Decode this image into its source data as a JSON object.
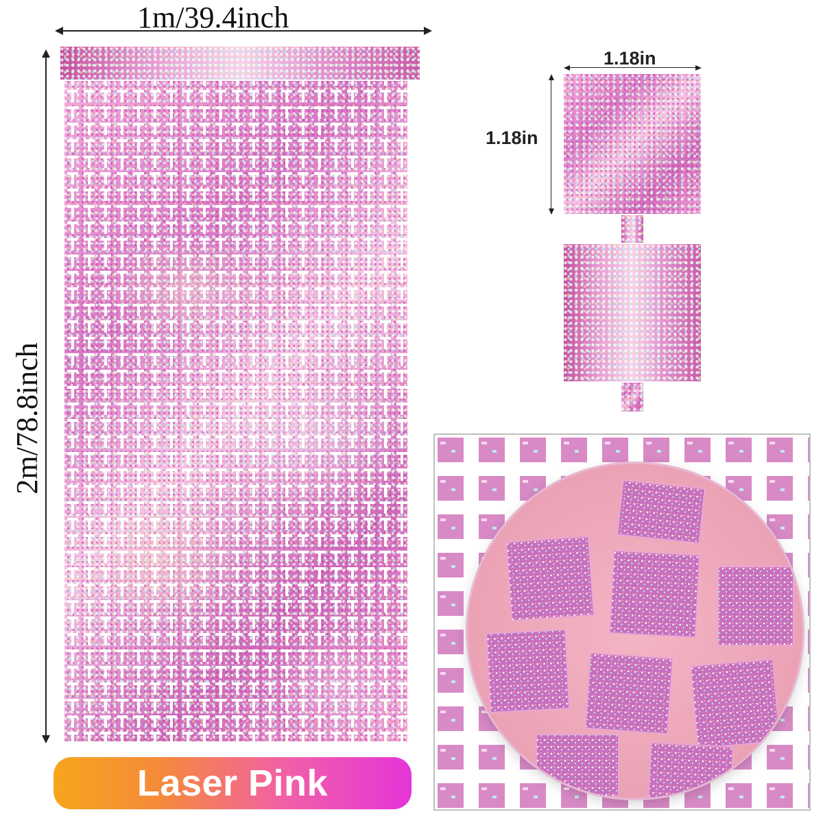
{
  "dimensions": {
    "width_label": "1m/39.4inch",
    "height_label": "2m/78.8inch",
    "piece_width_label": "1.18in",
    "piece_height_label": "1.18in"
  },
  "product": {
    "color_name": "Laser Pink"
  },
  "colors": {
    "foil_pink": "#e58fce",
    "pill_start": "#f7a51c",
    "pill_end": "#e534d8"
  }
}
